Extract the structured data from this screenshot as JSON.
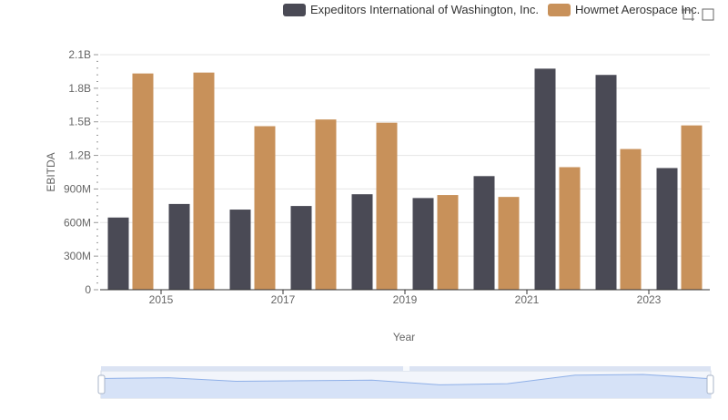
{
  "colors": {
    "series_a": "#4a4a55",
    "series_b": "#c8915a",
    "grid": "#e6e6e6",
    "axis_text": "#666666",
    "slider_fill": "#d6e2f7",
    "slider_border": "#c7d0e3",
    "slider_line": "#8fb0e8"
  },
  "toolbox": {
    "zoom_icon": "zoom-crosshair-icon",
    "restore_icon": "zoom-reset-icon"
  },
  "chart_data": {
    "type": "bar",
    "categories": [
      "2014",
      "2015",
      "2016",
      "2017",
      "2018",
      "2019",
      "2020",
      "2021",
      "2022",
      "2023"
    ],
    "x_tick_labels": [
      "",
      "2015",
      "",
      "2017",
      "",
      "2019",
      "",
      "2021",
      "",
      "2023"
    ],
    "series": [
      {
        "name": "Expeditors International of Washington, Inc.",
        "values": [
          645000000,
          766000000,
          716000000,
          748000000,
          853000000,
          819000000,
          1015000000,
          1975000000,
          1919000000,
          1087000000
        ]
      },
      {
        "name": "Howmet Aerospace Inc.",
        "values": [
          1932000000,
          1940000000,
          1461000000,
          1521000000,
          1492000000,
          846000000,
          829000000,
          1095000000,
          1257000000,
          1468000000
        ]
      }
    ],
    "ylim": [
      0,
      2100000000
    ],
    "yticks": [
      0,
      300000000,
      600000000,
      900000000,
      1200000000,
      1500000000,
      1800000000,
      2100000000
    ],
    "ytick_labels": [
      "0",
      "300M",
      "600M",
      "900M",
      "1.2B",
      "1.5B",
      "1.8B",
      "2.1B"
    ],
    "xlabel": "Year",
    "ylabel": "EBITDA",
    "grid": true,
    "legend": "top-right"
  }
}
